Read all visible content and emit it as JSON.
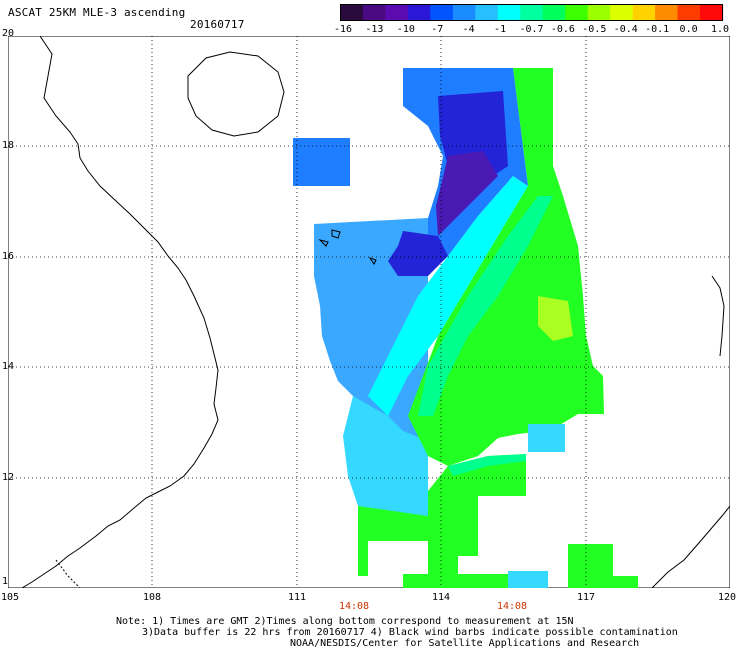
{
  "header": {
    "title": "ASCAT 25KM MLE-3 ascending",
    "date": "20160717"
  },
  "colorbar": {
    "colors": [
      "#2b0a3d",
      "#4a0a82",
      "#5b0bb0",
      "#2a18d6",
      "#0055ff",
      "#1b8cff",
      "#26c0ff",
      "#00ffff",
      "#00ff9e",
      "#00ff5a",
      "#3cff00",
      "#9cff00",
      "#dcff00",
      "#ffd200",
      "#ff8c00",
      "#ff3c00",
      "#ff0a0a"
    ],
    "tick_labels": [
      "-16",
      "-13",
      "-10",
      "-7",
      "-4",
      "-1",
      "-0.7",
      "-0.6",
      "-0.5",
      "-0.4",
      "-0.1",
      "0.0",
      "1.0"
    ]
  },
  "map": {
    "lat_labels": [
      "20",
      "18",
      "16",
      "14",
      "12",
      "1"
    ],
    "lon_labels": [
      "105",
      "108",
      "111",
      "114",
      "117",
      "120"
    ],
    "time_labels": [
      "14:08",
      "14:08"
    ],
    "data_colors": {
      "blue": "#1f7dff",
      "mid_blue": "#3aa8ff",
      "light_blue": "#35d8ff",
      "cyan": "#00ffff",
      "deep_blue": "#2323d8",
      "purple": "#4b1ab4",
      "green_blue": "#00ff8c",
      "green": "#22ff22",
      "yellow_green": "#aaff22"
    }
  },
  "notes": {
    "line1": "Note: 1) Times are GMT 2)Times along bottom correspond to measurement at 15N",
    "line2": "3)Data buffer is 22 hrs from 20160717 4) Black wind barbs indicate possible contamination",
    "line3": "NOAA/NESDIS/Center for Satellite Applications and Research"
  }
}
